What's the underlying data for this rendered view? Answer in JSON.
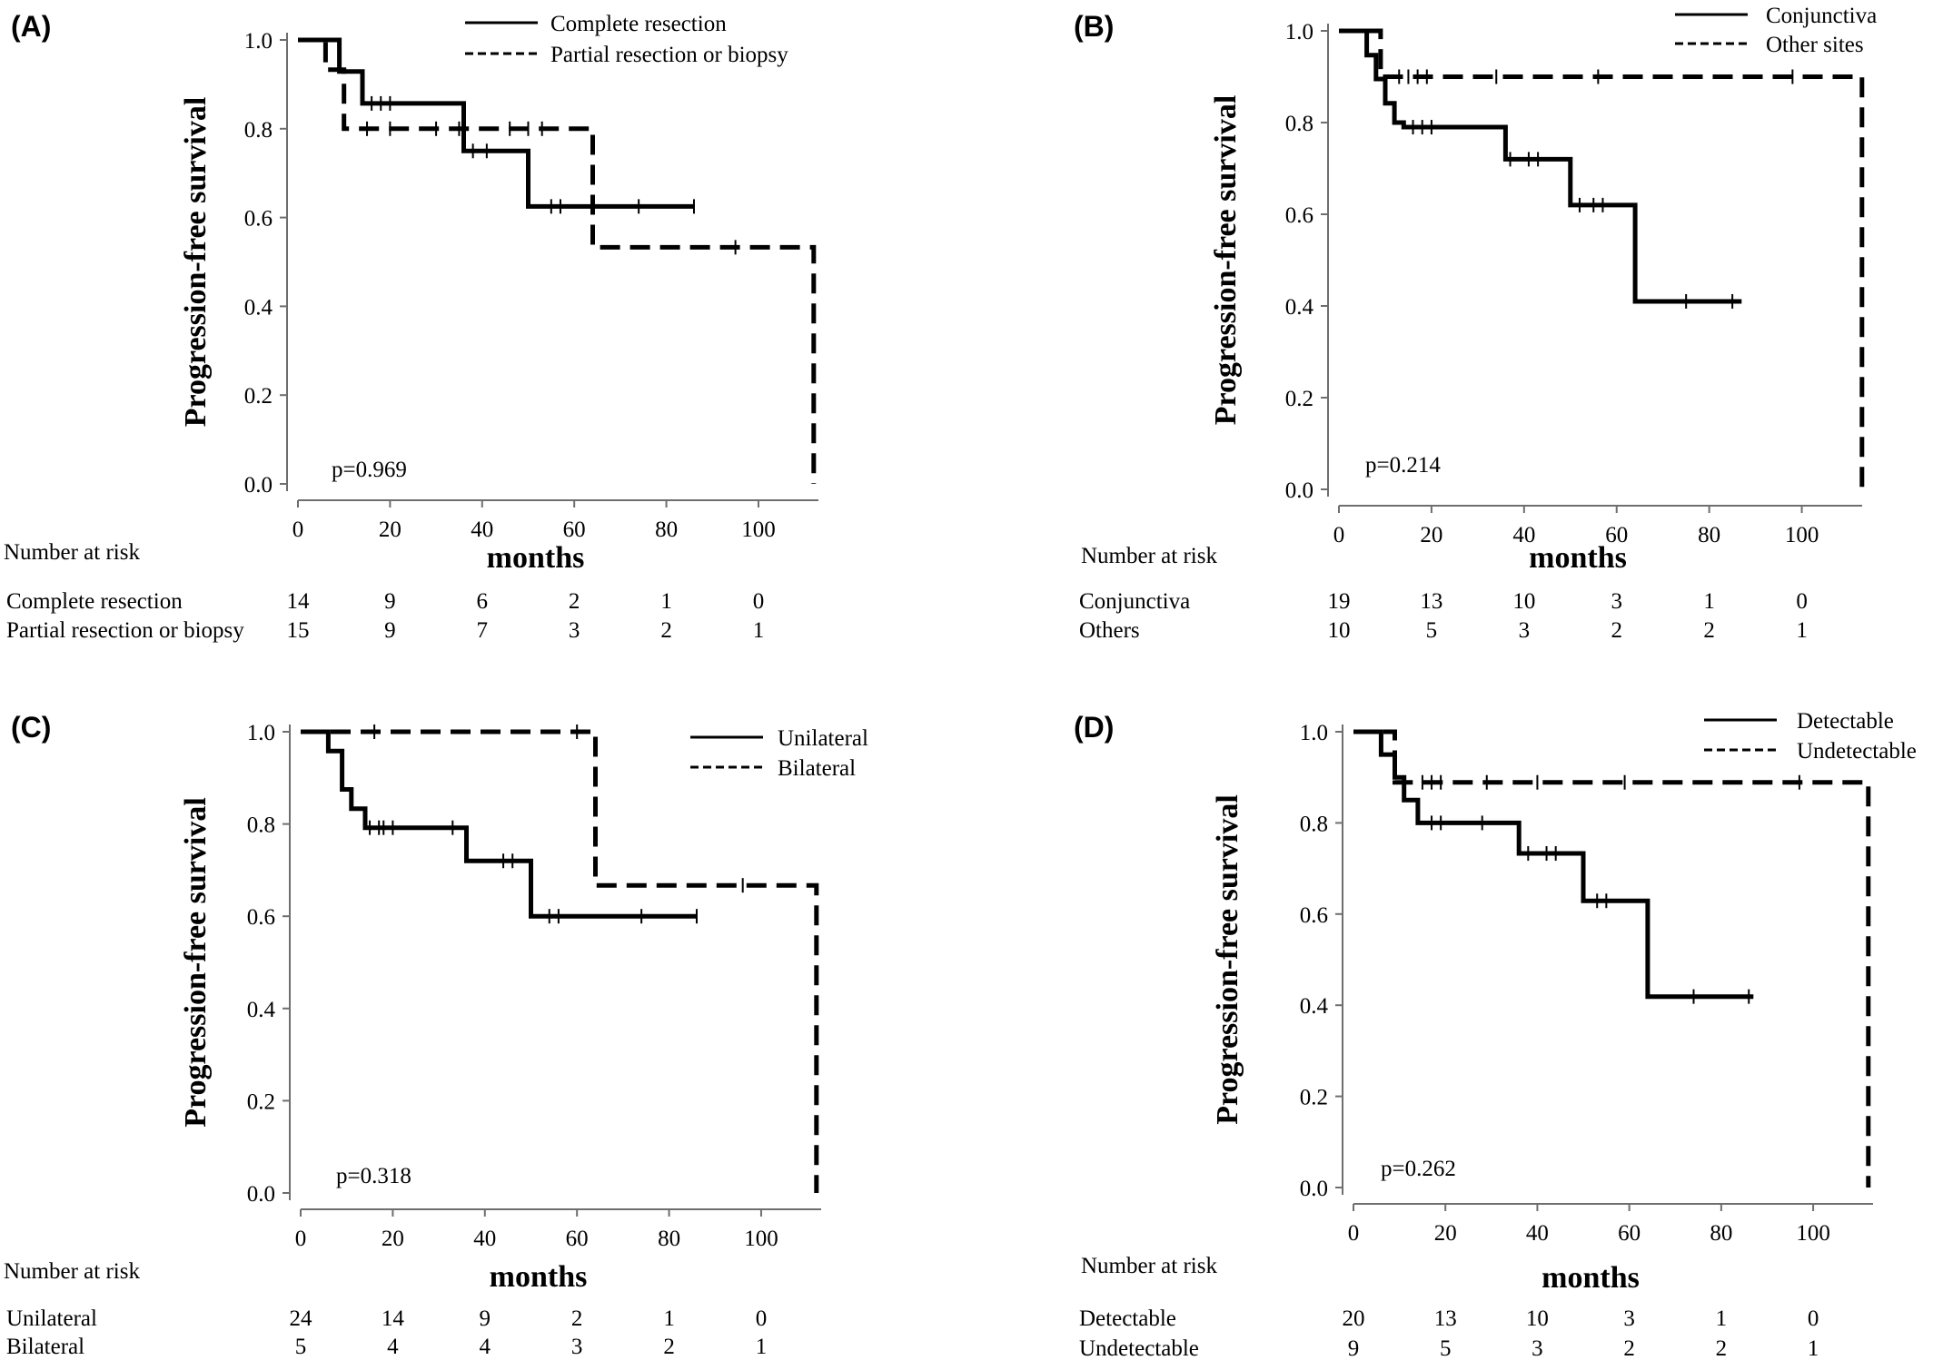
{
  "chart_data": [
    {
      "type": "line",
      "panel_label": "(A)",
      "ylabel": "Progression-free survival",
      "xlabel": "months",
      "xlim": [
        0,
        115
      ],
      "ylim": [
        0,
        1.0
      ],
      "xticks": [
        0,
        20,
        40,
        60,
        80,
        100
      ],
      "yticks": [
        "0.0",
        "0.2",
        "0.4",
        "0.6",
        "0.8",
        "1.0"
      ],
      "p_value": "p=0.969",
      "legend_position": "top-right",
      "series": [
        {
          "name": "Complete resection",
          "style": "solid",
          "x": [
            0,
            9,
            9,
            14,
            14,
            36,
            36,
            50,
            50,
            86
          ],
          "y": [
            1.0,
            1.0,
            0.929,
            0.929,
            0.857,
            0.857,
            0.75,
            0.75,
            0.625,
            0.625
          ],
          "censor_x": [
            16,
            18,
            20,
            38,
            41,
            55,
            57,
            74,
            86
          ],
          "censor_y": [
            0.857,
            0.857,
            0.857,
            0.75,
            0.75,
            0.625,
            0.625,
            0.625,
            0.625
          ]
        },
        {
          "name": "Partial resection or biopsy",
          "style": "dashed",
          "x": [
            0,
            6,
            6,
            10,
            10,
            64,
            64,
            112,
            112
          ],
          "y": [
            1.0,
            1.0,
            0.933,
            0.933,
            0.8,
            0.8,
            0.533,
            0.533,
            0.0
          ],
          "censor_x": [
            15,
            20,
            30,
            35,
            46,
            50,
            53,
            95
          ],
          "censor_y": [
            0.8,
            0.8,
            0.8,
            0.8,
            0.8,
            0.8,
            0.8,
            0.533
          ]
        }
      ],
      "risk_table": {
        "title": "Number at risk",
        "rows": [
          {
            "label": "Complete resection",
            "counts": [
              "14",
              "9",
              "6",
              "2",
              "1",
              "0"
            ]
          },
          {
            "label": "Partial resection or biopsy",
            "counts": [
              "15",
              "9",
              "7",
              "3",
              "2",
              "1"
            ]
          }
        ]
      }
    },
    {
      "type": "line",
      "panel_label": "(B)",
      "ylabel": "Progression-free survival",
      "xlabel": "months",
      "xlim": [
        0,
        115
      ],
      "ylim": [
        0,
        1.0
      ],
      "xticks": [
        0,
        20,
        40,
        60,
        80,
        100
      ],
      "yticks": [
        "0.0",
        "0.2",
        "0.4",
        "0.6",
        "0.8",
        "1.0"
      ],
      "p_value": "p=0.214",
      "legend_position": "top-right",
      "series": [
        {
          "name": "Conjunctiva",
          "style": "solid",
          "x": [
            0,
            6,
            6,
            8,
            8,
            10,
            10,
            12,
            12,
            14,
            14,
            36,
            36,
            50,
            50,
            64,
            64,
            87
          ],
          "y": [
            1.0,
            1.0,
            0.947,
            0.947,
            0.895,
            0.895,
            0.842,
            0.842,
            0.8,
            0.8,
            0.79,
            0.79,
            0.72,
            0.72,
            0.62,
            0.62,
            0.41,
            0.41
          ],
          "censor_x": [
            16,
            18,
            20,
            37,
            41,
            43,
            52,
            55,
            57,
            75,
            85
          ],
          "censor_y": [
            0.79,
            0.79,
            0.79,
            0.72,
            0.72,
            0.72,
            0.62,
            0.62,
            0.62,
            0.41,
            0.41
          ]
        },
        {
          "name": "Other sites",
          "style": "dashed",
          "x": [
            0,
            9,
            9,
            113,
            113
          ],
          "y": [
            1.0,
            1.0,
            0.9,
            0.9,
            0.0
          ],
          "censor_x": [
            13,
            15,
            17,
            19,
            34,
            56,
            98
          ],
          "censor_y": [
            0.9,
            0.9,
            0.9,
            0.9,
            0.9,
            0.9,
            0.9
          ]
        }
      ],
      "risk_table": {
        "title": "Number at risk",
        "rows": [
          {
            "label": "Conjunctiva",
            "counts": [
              "19",
              "13",
              "10",
              "3",
              "1",
              "0"
            ]
          },
          {
            "label": "Others",
            "counts": [
              "10",
              "5",
              "3",
              "2",
              "2",
              "1"
            ]
          }
        ]
      }
    },
    {
      "type": "line",
      "panel_label": "(C)",
      "ylabel": "Progression-free survival",
      "xlabel": "months",
      "xlim": [
        0,
        115
      ],
      "ylim": [
        0,
        1.0
      ],
      "xticks": [
        0,
        20,
        40,
        60,
        80,
        100
      ],
      "yticks": [
        "0.0",
        "0.2",
        "0.4",
        "0.6",
        "0.8",
        "1.0"
      ],
      "p_value": "p=0.318",
      "legend_position": "top-right",
      "series": [
        {
          "name": "Unilateral",
          "style": "solid",
          "x": [
            0,
            6,
            6,
            9,
            9,
            11,
            11,
            14,
            14,
            36,
            36,
            50,
            50,
            86
          ],
          "y": [
            1.0,
            1.0,
            0.958,
            0.958,
            0.875,
            0.875,
            0.833,
            0.833,
            0.792,
            0.792,
            0.72,
            0.72,
            0.6,
            0.6
          ],
          "censor_x": [
            15,
            17,
            18,
            20,
            33,
            44,
            46,
            54,
            56,
            74,
            86
          ],
          "censor_y": [
            0.792,
            0.792,
            0.792,
            0.792,
            0.792,
            0.72,
            0.72,
            0.6,
            0.6,
            0.6,
            0.6
          ]
        },
        {
          "name": "Bilateral",
          "style": "dashed",
          "x": [
            0,
            64,
            64,
            112,
            112
          ],
          "y": [
            1.0,
            1.0,
            0.667,
            0.667,
            0.0
          ],
          "censor_x": [
            16,
            60,
            96
          ],
          "censor_y": [
            1.0,
            1.0,
            0.667
          ]
        }
      ],
      "risk_table": {
        "title": "Number at risk",
        "rows": [
          {
            "label": "Unilateral",
            "counts": [
              "24",
              "14",
              "9",
              "2",
              "1",
              "0"
            ]
          },
          {
            "label": "Bilateral",
            "counts": [
              "5",
              "4",
              "4",
              "3",
              "2",
              "1"
            ]
          }
        ]
      }
    },
    {
      "type": "line",
      "panel_label": "(D)",
      "ylabel": "Progression-free survival",
      "xlabel": "months",
      "xlim": [
        0,
        115
      ],
      "ylim": [
        0,
        1.0
      ],
      "xticks": [
        0,
        20,
        40,
        60,
        80,
        100
      ],
      "yticks": [
        "0.0",
        "0.2",
        "0.4",
        "0.6",
        "0.8",
        "1.0"
      ],
      "p_value": "p=0.262",
      "legend_position": "top-right",
      "series": [
        {
          "name": "Detectable",
          "style": "solid",
          "x": [
            0,
            6,
            6,
            9,
            9,
            11,
            11,
            14,
            14,
            36,
            36,
            50,
            50,
            64,
            64,
            87
          ],
          "y": [
            1.0,
            1.0,
            0.95,
            0.95,
            0.9,
            0.9,
            0.85,
            0.85,
            0.8,
            0.8,
            0.733,
            0.733,
            0.629,
            0.629,
            0.419,
            0.419
          ],
          "censor_x": [
            17,
            19,
            28,
            38,
            42,
            44,
            53,
            55,
            74,
            86
          ],
          "censor_y": [
            0.8,
            0.8,
            0.8,
            0.733,
            0.733,
            0.733,
            0.629,
            0.629,
            0.419,
            0.419
          ]
        },
        {
          "name": "Undetectable",
          "style": "dashed",
          "x": [
            0,
            9,
            9,
            112,
            112
          ],
          "y": [
            1.0,
            1.0,
            0.889,
            0.889,
            0.0
          ],
          "censor_x": [
            15,
            17,
            19,
            29,
            40,
            59,
            97
          ],
          "censor_y": [
            0.889,
            0.889,
            0.889,
            0.889,
            0.889,
            0.889,
            0.889
          ]
        }
      ],
      "risk_table": {
        "title": "Number at risk",
        "rows": [
          {
            "label": "Detectable",
            "counts": [
              "20",
              "13",
              "10",
              "3",
              "1",
              "0"
            ]
          },
          {
            "label": "Undetectable",
            "counts": [
              "9",
              "5",
              "3",
              "2",
              "2",
              "1"
            ]
          }
        ]
      }
    }
  ]
}
